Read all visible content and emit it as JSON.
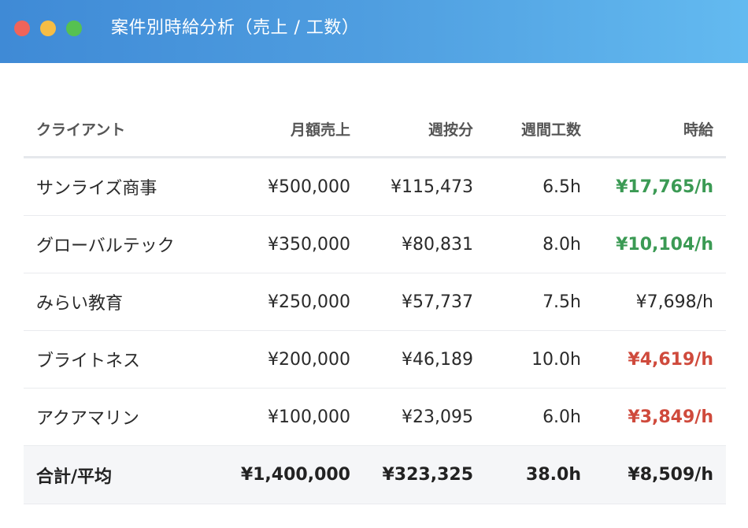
{
  "window": {
    "title": "案件別時給分析（売上 / 工数）"
  },
  "table": {
    "headers": [
      "クライアント",
      "月額売上",
      "週按分",
      "週間工数",
      "時給"
    ],
    "rows": [
      {
        "client": "サンライズ商事",
        "monthly": "¥500,000",
        "weekly": "¥115,473",
        "hours": "6.5h",
        "rate": "¥17,765/h",
        "status": "good"
      },
      {
        "client": "グローバルテック",
        "monthly": "¥350,000",
        "weekly": "¥80,831",
        "hours": "8.0h",
        "rate": "¥10,104/h",
        "status": "good"
      },
      {
        "client": "みらい教育",
        "monthly": "¥250,000",
        "weekly": "¥57,737",
        "hours": "7.5h",
        "rate": "¥7,698/h",
        "status": "neutral"
      },
      {
        "client": "ブライトネス",
        "monthly": "¥200,000",
        "weekly": "¥46,189",
        "hours": "10.0h",
        "rate": "¥4,619/h",
        "status": "bad"
      },
      {
        "client": "アクアマリン",
        "monthly": "¥100,000",
        "weekly": "¥23,095",
        "hours": "6.0h",
        "rate": "¥3,849/h",
        "status": "bad"
      }
    ],
    "total": {
      "label": "合計/平均",
      "monthly": "¥1,400,000",
      "weekly": "¥323,325",
      "hours": "38.0h",
      "rate": "¥8,509/h"
    }
  },
  "colors": {
    "good": "#3b9a54",
    "bad": "#cf4a3c",
    "neutral": "#2a2a2a"
  }
}
